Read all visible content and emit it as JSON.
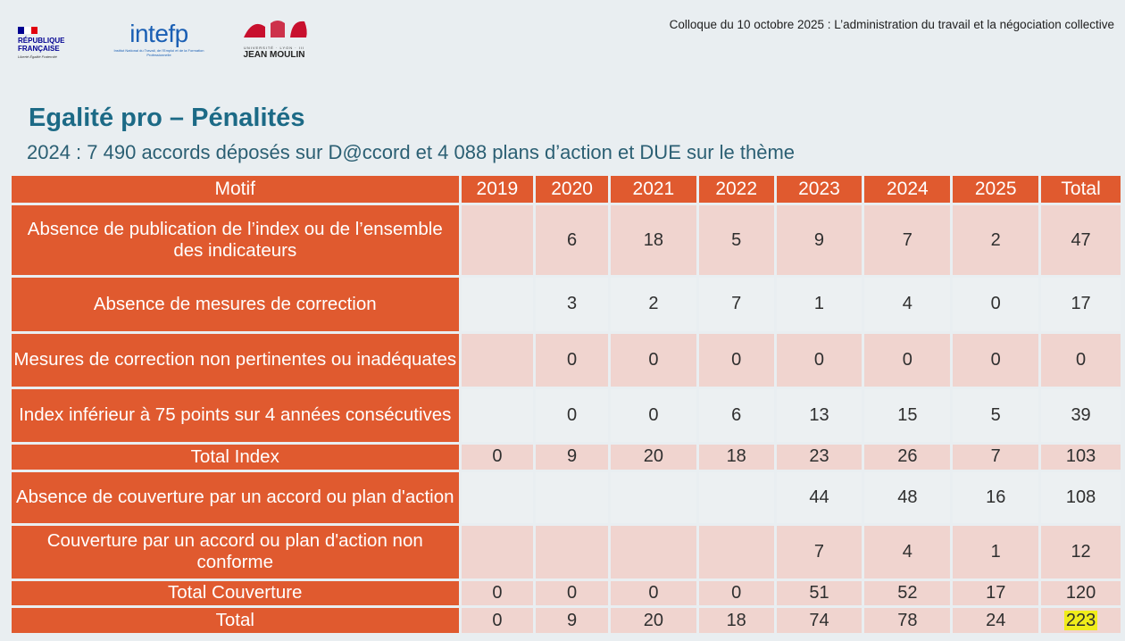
{
  "header": {
    "rf": {
      "line1": "RÉPUBLIQUE",
      "line2": "FRANÇAISE",
      "motto": "Liberté Égalité Fraternité",
      "flag_colors": [
        "#000091",
        "#ffffff",
        "#e1000f"
      ]
    },
    "intefp": {
      "name": "intefp",
      "subtitle": "Institut National du Travail, de l'Emploi et de la Formation Professionnelle"
    },
    "lyon": {
      "subtitle": "UNIVERSITÉ · LYON · III",
      "name": "JEAN MOULIN"
    },
    "colloque": "Colloque du 10 octobre 2025 : L’administration du travail et la négociation collective"
  },
  "title": "Egalité pro – Pénalités",
  "subtitle": "2024 : 7 490 accords déposés sur D@ccord et 4 088 plans d’action et DUE sur le thème",
  "colors": {
    "accent": "#e05a2f",
    "title": "#1c6a86",
    "pink_cell": "#f0d4cf",
    "light_cell": "#ecf0f2",
    "highlight": "#f0ec1b"
  },
  "table": {
    "columns": [
      "Motif",
      "2019",
      "2020",
      "2021",
      "2022",
      "2023",
      "2024",
      "2025",
      "Total"
    ],
    "rows": [
      {
        "motif": "Absence de publication de l’index ou de l’ensemble des indicateurs",
        "values": [
          "",
          "6",
          "18",
          "5",
          "9",
          "7",
          "2",
          "47"
        ]
      },
      {
        "motif": "Absence de mesures de correction",
        "values": [
          "",
          "3",
          "2",
          "7",
          "1",
          "4",
          "0",
          "17"
        ]
      },
      {
        "motif": "Mesures de correction non pertinentes ou inadéquates",
        "values": [
          "",
          "0",
          "0",
          "0",
          "0",
          "0",
          "0",
          "0"
        ]
      },
      {
        "motif": "Index inférieur à 75 points sur 4 années consécutives",
        "values": [
          "",
          "0",
          "0",
          "6",
          "13",
          "15",
          "5",
          "39"
        ]
      },
      {
        "motif": "Total Index",
        "values": [
          "0",
          "9",
          "20",
          "18",
          "23",
          "26",
          "7",
          "103"
        ]
      },
      {
        "motif": "Absence de couverture par un accord ou plan d'action",
        "values": [
          "",
          "",
          "",
          "",
          "44",
          "48",
          "16",
          "108"
        ]
      },
      {
        "motif": "Couverture par un accord ou plan d'action non conforme",
        "values": [
          "",
          "",
          "",
          "",
          "7",
          "4",
          "1",
          "12"
        ]
      },
      {
        "motif": "Total Couverture",
        "values": [
          "0",
          "0",
          "0",
          "0",
          "51",
          "52",
          "17",
          "120"
        ]
      },
      {
        "motif": "Total",
        "values": [
          "0",
          "9",
          "20",
          "18",
          "74",
          "78",
          "24",
          "223"
        ]
      }
    ]
  }
}
